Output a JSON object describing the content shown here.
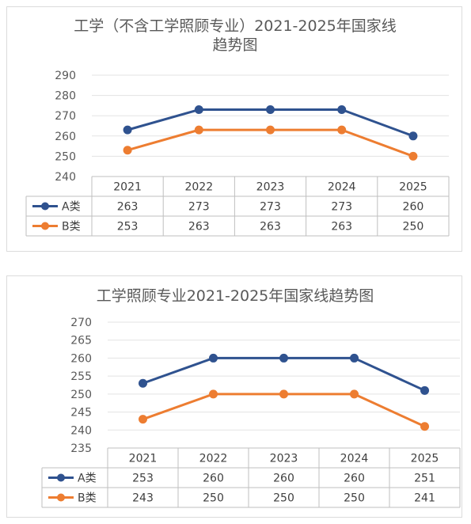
{
  "chart_data": [
    {
      "type": "line",
      "title_lines": [
        "工学（不含工学照顾专业）2021-2025年国家线",
        "趋势图"
      ],
      "categories": [
        "2021",
        "2022",
        "2023",
        "2024",
        "2025"
      ],
      "yticks": [
        290,
        280,
        270,
        260,
        250,
        240
      ],
      "ylim": [
        240,
        290
      ],
      "grid": true,
      "legend_placement": "data-table",
      "series": [
        {
          "name": "A类",
          "color": "#2f528f",
          "values": [
            263,
            273,
            273,
            273,
            260
          ],
          "labels": [
            "263",
            "273",
            "273",
            "273",
            "260"
          ]
        },
        {
          "name": "B类",
          "color": "#ed7d31",
          "values": [
            253,
            263,
            263,
            263,
            250
          ],
          "labels": [
            "253",
            "263",
            "263",
            "263",
            "250"
          ]
        }
      ]
    },
    {
      "type": "line",
      "title_lines": [
        "工学照顾专业2021-2025年国家线趋势图"
      ],
      "categories": [
        "2021",
        "2022",
        "2023",
        "2024",
        "2025"
      ],
      "yticks": [
        270,
        265,
        260,
        255,
        250,
        245,
        240,
        235
      ],
      "ylim": [
        235,
        270
      ],
      "grid": true,
      "legend_placement": "data-table",
      "series": [
        {
          "name": "A类",
          "color": "#2f528f",
          "values": [
            253,
            260,
            260,
            260,
            251
          ],
          "labels": [
            "253",
            "260",
            "260",
            "260",
            "251"
          ]
        },
        {
          "name": "B类",
          "color": "#ed7d31",
          "values": [
            243,
            250,
            250,
            250,
            241
          ],
          "labels": [
            "243",
            "250",
            "250",
            "250",
            "241"
          ]
        }
      ]
    }
  ]
}
